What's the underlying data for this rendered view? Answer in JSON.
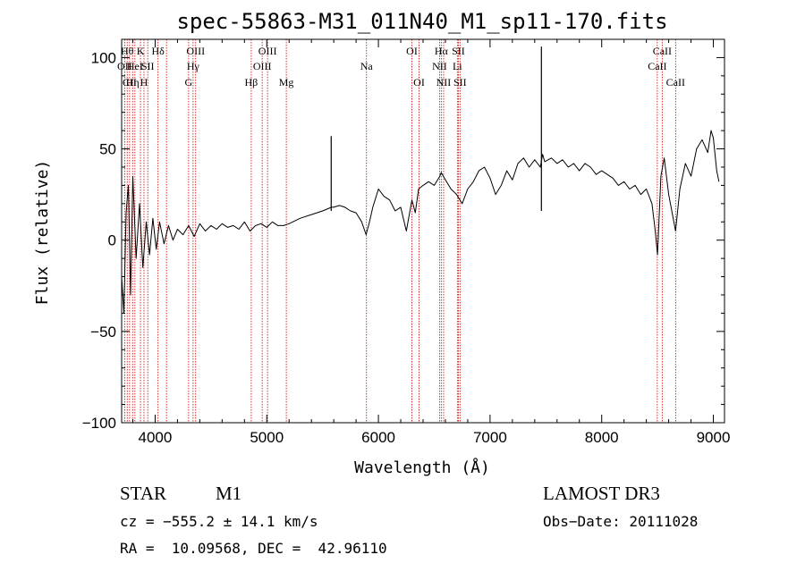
{
  "chart_data": {
    "type": "line",
    "title": "spec-55863-M31_011N40_M1_sp11-170.fits",
    "xlabel": "Wavelength (Å)",
    "ylabel": "Flux (relative)",
    "xlim": [
      3700,
      9100
    ],
    "ylim": [
      -100,
      110
    ],
    "xticks": [
      4000,
      5000,
      6000,
      7000,
      8000,
      9000
    ],
    "yticks": [
      -100,
      -50,
      0,
      50,
      100
    ],
    "xtick_labels": [
      "4000",
      "5000",
      "6000",
      "7000",
      "8000",
      "9000"
    ],
    "ytick_labels": [
      "−100",
      "−50",
      "0",
      "50",
      "100"
    ],
    "series": [
      {
        "x": [
          3700,
          3720,
          3740,
          3760,
          3780,
          3800,
          3830,
          3860,
          3890,
          3920,
          3950,
          3980,
          4010,
          4040,
          4080,
          4120,
          4160,
          4200,
          4250,
          4300,
          4350,
          4400,
          4450,
          4500,
          4550,
          4600,
          4650,
          4700,
          4750,
          4800,
          4850,
          4900,
          4950,
          5000,
          5050,
          5100,
          5150,
          5200,
          5300,
          5400,
          5500,
          5580,
          5600,
          5650,
          5700,
          5750,
          5800,
          5850,
          5890,
          5920,
          5950,
          6000,
          6050,
          6100,
          6150,
          6200,
          6250,
          6300,
          6330,
          6360,
          6400,
          6450,
          6500,
          6550,
          6563,
          6600,
          6650,
          6700,
          6750,
          6800,
          6850,
          6900,
          6950,
          7000,
          7050,
          7100,
          7150,
          7200,
          7250,
          7300,
          7350,
          7400,
          7450,
          7470,
          7490,
          7550,
          7600,
          7650,
          7700,
          7750,
          7800,
          7850,
          7900,
          7950,
          8000,
          8050,
          8100,
          8150,
          8200,
          8250,
          8300,
          8350,
          8400,
          8450,
          8480,
          8500,
          8530,
          8560,
          8600,
          8640,
          8662,
          8700,
          8750,
          8800,
          8850,
          8900,
          8950,
          8980,
          9000,
          9030,
          9050
        ],
        "y": [
          -20,
          -40,
          15,
          30,
          -30,
          35,
          -10,
          20,
          -15,
          10,
          -8,
          12,
          -5,
          10,
          -2,
          8,
          0,
          6,
          3,
          8,
          2,
          9,
          5,
          8,
          6,
          9,
          7,
          8,
          6,
          10,
          5,
          8,
          9,
          7,
          10,
          8,
          8,
          9,
          12,
          14,
          16,
          18,
          18,
          19,
          18,
          16,
          15,
          10,
          3,
          10,
          18,
          28,
          24,
          22,
          16,
          18,
          5,
          22,
          15,
          28,
          30,
          32,
          30,
          35,
          37,
          33,
          28,
          25,
          20,
          28,
          32,
          38,
          40,
          34,
          25,
          30,
          38,
          33,
          42,
          45,
          40,
          44,
          40,
          47,
          43,
          45,
          42,
          44,
          40,
          42,
          38,
          42,
          40,
          36,
          38,
          36,
          34,
          30,
          32,
          28,
          30,
          25,
          28,
          20,
          5,
          -8,
          35,
          45,
          25,
          12,
          5,
          28,
          42,
          35,
          50,
          55,
          48,
          60,
          56,
          38,
          32
        ]
      },
      {
        "x": [
          5577
        ],
        "y": [
          57
        ]
      },
      {
        "x": [
          7460
        ],
        "y": [
          106
        ]
      }
    ],
    "grid": false,
    "annotations": [
      {
        "x": 3727,
        "label": "OII",
        "row": 1
      },
      {
        "x": 3750,
        "label": "Hθ",
        "row": 0
      },
      {
        "x": 3771,
        "label": "CII",
        "row": 2
      },
      {
        "x": 3798,
        "label": "Hη",
        "row": 2
      },
      {
        "x": 3819,
        "label": "HeI",
        "row": 1
      },
      {
        "x": 3869,
        "label": "K",
        "row": 0
      },
      {
        "x": 3900,
        "label": "H",
        "row": 2
      },
      {
        "x": 3934,
        "label": "SII",
        "row": 1
      },
      {
        "x": 4026,
        "label": "Hδ",
        "row": 0
      },
      {
        "x": 4102,
        "label": "",
        "row": 0
      },
      {
        "x": 4300,
        "label": "G",
        "row": 2
      },
      {
        "x": 4340,
        "label": "Hγ",
        "row": 1
      },
      {
        "x": 4363,
        "label": "OIII",
        "row": 0
      },
      {
        "x": 4861,
        "label": "Hβ",
        "row": 2
      },
      {
        "x": 4959,
        "label": "OIII",
        "row": 1
      },
      {
        "x": 5007,
        "label": "OIII",
        "row": 0
      },
      {
        "x": 5175,
        "label": "Mg",
        "row": 2
      },
      {
        "x": 5893,
        "label": "Na",
        "row": 1
      },
      {
        "x": 6300,
        "label": "OI",
        "row": 0
      },
      {
        "x": 6364,
        "label": "OI",
        "row": 2
      },
      {
        "x": 6548,
        "label": "NII",
        "row": 1
      },
      {
        "x": 6563,
        "label": "Hα",
        "row": 0
      },
      {
        "x": 6584,
        "label": "NII",
        "row": 2
      },
      {
        "x": 6716,
        "label": "SII",
        "row": 0
      },
      {
        "x": 6707,
        "label": "Li",
        "row": 1
      },
      {
        "x": 6731,
        "label": "SII",
        "row": 2
      },
      {
        "x": 8498,
        "label": "CaII",
        "row": 1
      },
      {
        "x": 8542,
        "label": "CaII",
        "row": 0
      },
      {
        "x": 8662,
        "label": "CaII",
        "row": 2
      }
    ]
  },
  "info": {
    "object_type": "STAR",
    "subclass": "M1",
    "survey": "LAMOST DR3",
    "cz": "cz = −555.2 ± 14.1 km/s",
    "obs_date": "Obs−Date: 20111028",
    "radec": "RA =  10.09568, DEC =  42.96110"
  },
  "colors": {
    "spectrum": "#000000",
    "line_marker": "#cc0000",
    "axes": "#000000"
  }
}
